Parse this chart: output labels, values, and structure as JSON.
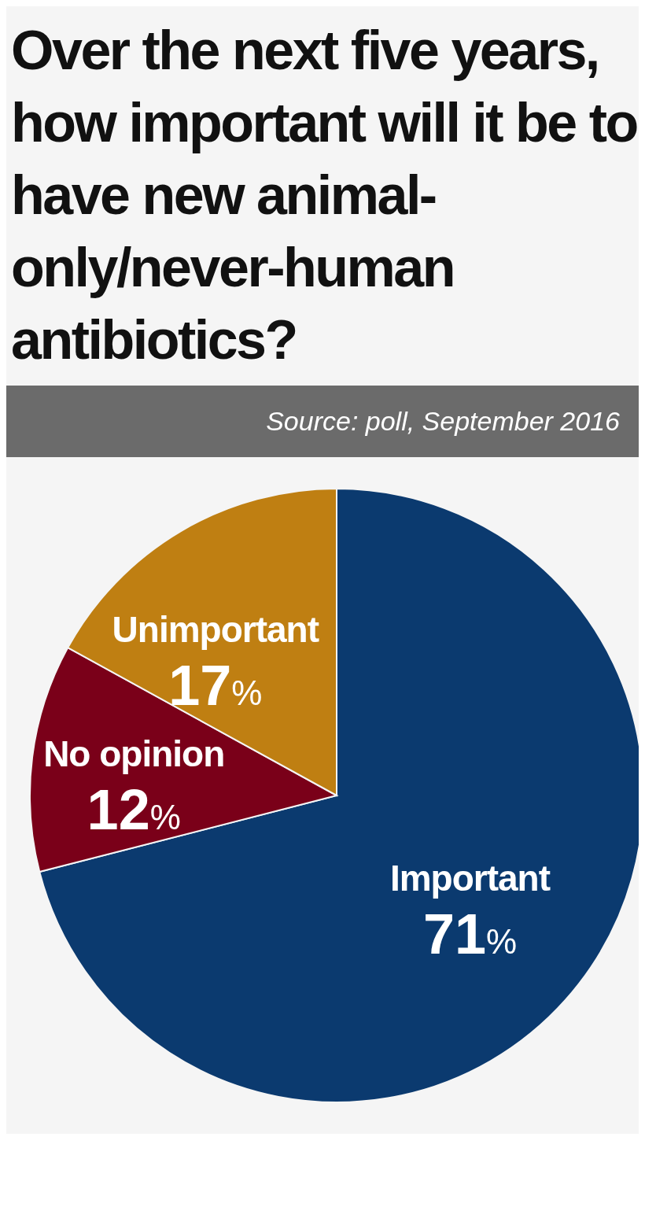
{
  "chart_data": {
    "type": "pie",
    "title": "Over the next five years, how important will it be to have new animal-only/never-human antibiotics?",
    "annotations": [
      "Source: poll, September 2016"
    ],
    "categories": [
      "Important",
      "No opinion",
      "Unimportant"
    ],
    "values": [
      71,
      12,
      17
    ],
    "colors": [
      "#0b3a6f",
      "#7a0019",
      "#bf7f12"
    ],
    "value_labels": [
      "71%",
      "12%",
      "17%"
    ]
  }
}
